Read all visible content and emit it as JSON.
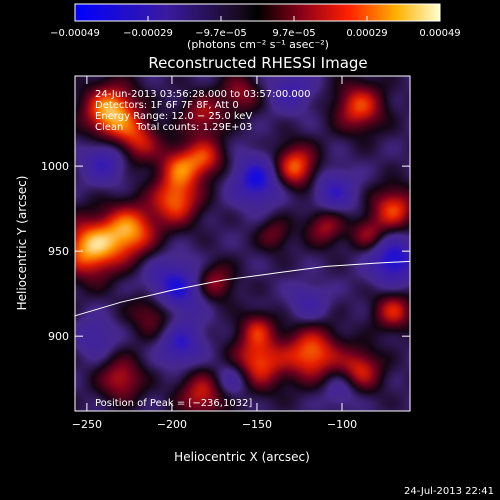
{
  "chart_data": {
    "type": "heatmap",
    "title": "Reconstructed RHESSI Image",
    "xlabel": "Heliocentric X (arcsec)",
    "ylabel": "Heliocentric Y (arcsec)",
    "xlim": [
      -257,
      -60
    ],
    "ylim": [
      856,
      1053
    ],
    "x_ticks": [
      -250,
      -200,
      -150,
      -100
    ],
    "x_tick_labels": [
      "−250",
      "−200",
      "−150",
      "−100"
    ],
    "y_ticks": [
      900,
      950,
      1000
    ],
    "y_tick_labels": [
      "900",
      "950",
      "1000"
    ],
    "colorbar": {
      "range": [
        -0.00049,
        0.00049
      ],
      "tick_labels": [
        "−0.00049",
        "−0.00029",
        "−9.7e−05",
        "9.7e−05",
        "0.00029",
        "0.00049"
      ],
      "units_label": "(photons cm⁻² s⁻¹ asec⁻²)"
    },
    "annotations": {
      "line1": "24-Jun-2013 03:56:28.000 to 03:57:00.000",
      "line2": "Detectors: 1F 6F 7F 8F, Att 0",
      "line3": "Energy Range: 12.0 − 25.0 keV",
      "line4": "Clean    Total counts: 1.29E+03",
      "peak": "Position of Peak = [−236,1032]"
    },
    "peak_position": [
      -236,
      1032
    ],
    "limb_curve": {
      "x": [
        -257,
        -230,
        -200,
        -170,
        -140,
        -110,
        -80,
        -60
      ],
      "y": [
        912,
        920,
        927,
        933,
        937,
        941,
        943,
        944
      ]
    },
    "hot_spots": [
      {
        "x": -236,
        "y": 1032,
        "amp": 1.0,
        "r": 11
      },
      {
        "x": -248,
        "y": 952,
        "amp": 0.95,
        "r": 12
      },
      {
        "x": -225,
        "y": 962,
        "amp": 0.85,
        "r": 11
      },
      {
        "x": -198,
        "y": 980,
        "amp": 0.75,
        "r": 10
      },
      {
        "x": -195,
        "y": 1000,
        "amp": 0.65,
        "r": 9
      },
      {
        "x": -182,
        "y": 1030,
        "amp": 0.5,
        "r": 9
      },
      {
        "x": -180,
        "y": 1005,
        "amp": 0.55,
        "r": 8
      },
      {
        "x": -220,
        "y": 1015,
        "amp": 0.55,
        "r": 9
      },
      {
        "x": -128,
        "y": 1000,
        "amp": 0.8,
        "r": 9
      },
      {
        "x": -90,
        "y": 1035,
        "amp": 0.7,
        "r": 10
      },
      {
        "x": -70,
        "y": 975,
        "amp": 0.7,
        "r": 9
      },
      {
        "x": -110,
        "y": 965,
        "amp": 0.5,
        "r": 8
      },
      {
        "x": -85,
        "y": 960,
        "amp": 0.45,
        "r": 7
      },
      {
        "x": -210,
        "y": 915,
        "amp": 0.6,
        "r": 10
      },
      {
        "x": -175,
        "y": 932,
        "amp": 0.5,
        "r": 8
      },
      {
        "x": -150,
        "y": 885,
        "amp": 0.75,
        "r": 11
      },
      {
        "x": -118,
        "y": 890,
        "amp": 0.8,
        "r": 11
      },
      {
        "x": -90,
        "y": 880,
        "amp": 0.65,
        "r": 9
      },
      {
        "x": -70,
        "y": 915,
        "amp": 0.6,
        "r": 8
      },
      {
        "x": -230,
        "y": 875,
        "amp": 0.55,
        "r": 9
      },
      {
        "x": -182,
        "y": 866,
        "amp": 0.6,
        "r": 10
      },
      {
        "x": -150,
        "y": 905,
        "amp": 0.45,
        "r": 7
      },
      {
        "x": -140,
        "y": 960,
        "amp": 0.35,
        "r": 7
      },
      {
        "x": -160,
        "y": 1043,
        "amp": 0.45,
        "r": 8
      }
    ],
    "cold_spots": [
      {
        "x": -200,
        "y": 927,
        "amp": 0.75,
        "r": 12
      },
      {
        "x": -150,
        "y": 992,
        "amp": 0.7,
        "r": 10
      },
      {
        "x": -70,
        "y": 945,
        "amp": 0.7,
        "r": 10
      },
      {
        "x": -195,
        "y": 895,
        "amp": 0.55,
        "r": 9
      },
      {
        "x": -240,
        "y": 1003,
        "amp": 0.5,
        "r": 9
      },
      {
        "x": -130,
        "y": 1045,
        "amp": 0.4,
        "r": 9
      },
      {
        "x": -105,
        "y": 985,
        "amp": 0.5,
        "r": 9
      },
      {
        "x": -165,
        "y": 875,
        "amp": 0.45,
        "r": 8
      },
      {
        "x": -120,
        "y": 920,
        "amp": 0.35,
        "r": 8
      },
      {
        "x": -245,
        "y": 900,
        "amp": 0.35,
        "r": 8
      },
      {
        "x": -100,
        "y": 870,
        "amp": 0.35,
        "r": 8
      }
    ]
  },
  "footer": {
    "timestamp": "24-Jul-2013 22:41"
  }
}
